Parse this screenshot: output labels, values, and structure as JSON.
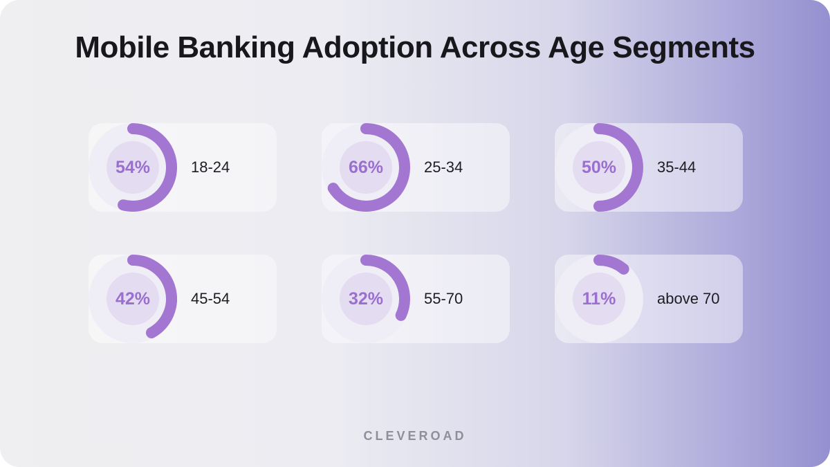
{
  "chart_data": {
    "type": "donut",
    "title": "Mobile Banking Adoption Across Age Segments",
    "unit": "%",
    "items": [
      {
        "label": "18-24",
        "value": 54,
        "display": "54%"
      },
      {
        "label": "25-34",
        "value": 66,
        "display": "66%"
      },
      {
        "label": "35-44",
        "value": 50,
        "display": "50%"
      },
      {
        "label": "45-54",
        "value": 42,
        "display": "42%"
      },
      {
        "label": "55-70",
        "value": 32,
        "display": "32%"
      },
      {
        "label": "above 70",
        "value": 11,
        "display": "11%"
      }
    ]
  },
  "branding": {
    "logo_text": "CLEVEROAD"
  },
  "colors": {
    "arc": "#a276d1",
    "track": "#efeef6",
    "inner": "#e4dcf1",
    "percent_text": "#9a6fcf"
  }
}
